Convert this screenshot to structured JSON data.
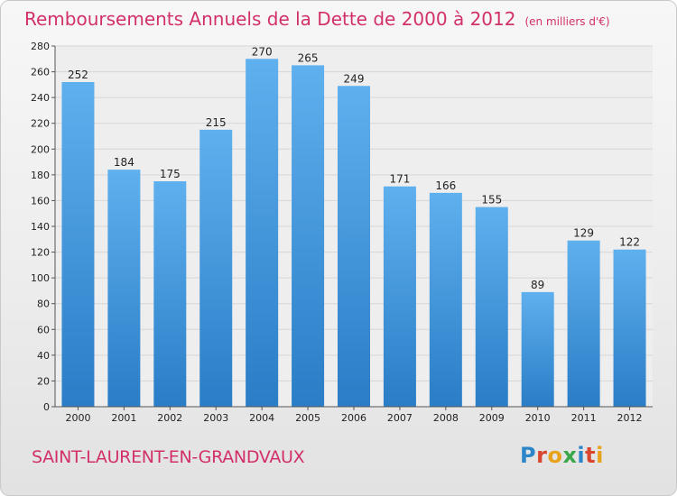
{
  "chart_data": {
    "type": "bar",
    "title": "Remboursements Annuels de la Dette de 2000 à 2012",
    "subtitle": "(en milliers d'€)",
    "categories": [
      "2000",
      "2001",
      "2002",
      "2003",
      "2004",
      "2005",
      "2006",
      "2007",
      "2008",
      "2009",
      "2010",
      "2011",
      "2012"
    ],
    "values": [
      252,
      184,
      175,
      215,
      270,
      265,
      249,
      171,
      166,
      155,
      89,
      129,
      122
    ],
    "ylim": [
      0,
      280
    ],
    "yticks": [
      0,
      20,
      40,
      60,
      80,
      100,
      120,
      140,
      160,
      180,
      200,
      220,
      240,
      260,
      280
    ],
    "grid": true,
    "bar_color": "#3d92d9"
  },
  "footer": {
    "city": "SAINT-LAURENT-EN-GRANDVAUX",
    "logo_text": "Proxiti",
    "logo_colors": [
      "#2b86c9",
      "#d8462f",
      "#e8a21b",
      "#3aa84a",
      "#2b86c9",
      "#d8462f",
      "#e8a21b"
    ]
  },
  "colors": {
    "title": "#d2306a",
    "grid": "#d6d6d6",
    "axis_text": "#222222"
  }
}
